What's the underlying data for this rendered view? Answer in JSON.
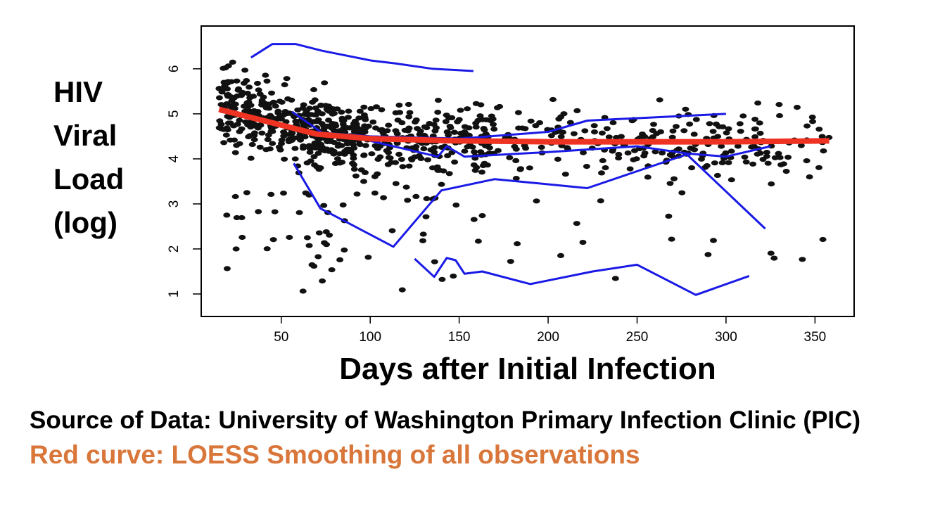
{
  "chart_data": {
    "type": "scatter",
    "xlabel": "Days after Initial Infection",
    "ylabel_lines": [
      "HIV",
      "Viral",
      "Load",
      "(log)"
    ],
    "xlim": [
      5,
      372
    ],
    "ylim": [
      0.5,
      6.95
    ],
    "x_ticks": [
      50,
      100,
      150,
      200,
      250,
      300,
      350
    ],
    "y_ticks": [
      1,
      2,
      3,
      4,
      5,
      6
    ],
    "grid": false,
    "legend": "none",
    "colors": {
      "points": "#111111",
      "individual_lines": "#1a1ae6",
      "loess": "#ee3322"
    },
    "series": [
      {
        "kind": "loess",
        "x": [
          15,
          30,
          50,
          70,
          100,
          150,
          200,
          250,
          300,
          358
        ],
        "y": [
          5.1,
          4.95,
          4.75,
          4.55,
          4.45,
          4.4,
          4.38,
          4.38,
          4.38,
          4.4
        ]
      },
      {
        "kind": "individual",
        "x": [
          33,
          45,
          58,
          73,
          101,
          114,
          135,
          158
        ],
        "y": [
          6.25,
          6.55,
          6.55,
          6.4,
          6.18,
          6.12,
          6.0,
          5.95
        ]
      },
      {
        "kind": "individual",
        "x": [
          56,
          73,
          100,
          150,
          200,
          222,
          300
        ],
        "y": [
          5.05,
          4.58,
          4.5,
          4.45,
          4.6,
          4.85,
          5.0
        ]
      },
      {
        "kind": "individual",
        "x": [
          57,
          72,
          113,
          140,
          170,
          222,
          278,
          322
        ],
        "y": [
          3.9,
          2.9,
          2.05,
          3.3,
          3.55,
          3.35,
          4.1,
          2.45
        ]
      },
      {
        "kind": "individual",
        "x": [
          100,
          138,
          143,
          153,
          200,
          250,
          278,
          300,
          325
        ],
        "y": [
          4.4,
          4.05,
          4.28,
          4.05,
          4.15,
          4.28,
          4.12,
          4.05,
          4.28
        ]
      },
      {
        "kind": "individual",
        "x": [
          125,
          136,
          143,
          148,
          153,
          163,
          190,
          225,
          250,
          283,
          313
        ],
        "y": [
          1.78,
          1.38,
          1.8,
          1.75,
          1.45,
          1.5,
          1.22,
          1.5,
          1.65,
          0.98,
          1.4
        ]
      }
    ],
    "points_note": "Approximately 900 individual observations (black dots), densest between days 20-150 and log viral load 3.5-5.5"
  },
  "caption": {
    "source": "Source of Data: University of Washington Primary Infection Clinic (PIC)",
    "note": "Red curve: LOESS Smoothing of all observations"
  }
}
